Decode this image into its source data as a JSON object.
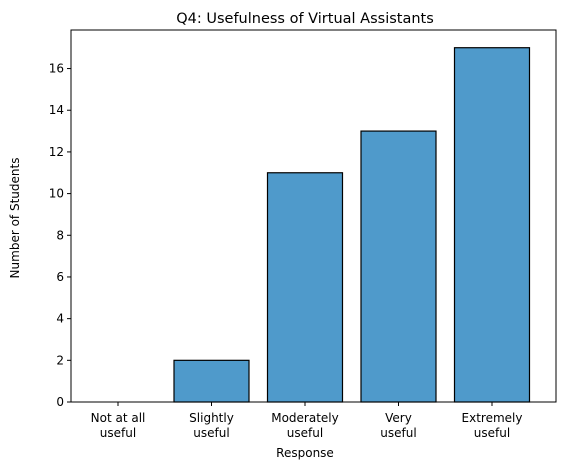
{
  "chart_data": {
    "type": "bar",
    "title": "Q4: Usefulness of Virtual Assistants",
    "xlabel": "Response",
    "ylabel": "Number of Students",
    "categories": [
      "Not at all\nuseful",
      "Slightly\nuseful",
      "Moderately\nuseful",
      "Very\nuseful",
      "Extremely\nuseful"
    ],
    "values": [
      0,
      2,
      11,
      13,
      17
    ],
    "ylim": [
      0,
      17.85
    ],
    "yticks": [
      0,
      2,
      4,
      6,
      8,
      10,
      12,
      14,
      16
    ],
    "grid": false,
    "colors": {
      "bar_fill": "#4f9acb",
      "bar_edge": "#000000",
      "axis": "#000000",
      "background": "#ffffff"
    }
  }
}
